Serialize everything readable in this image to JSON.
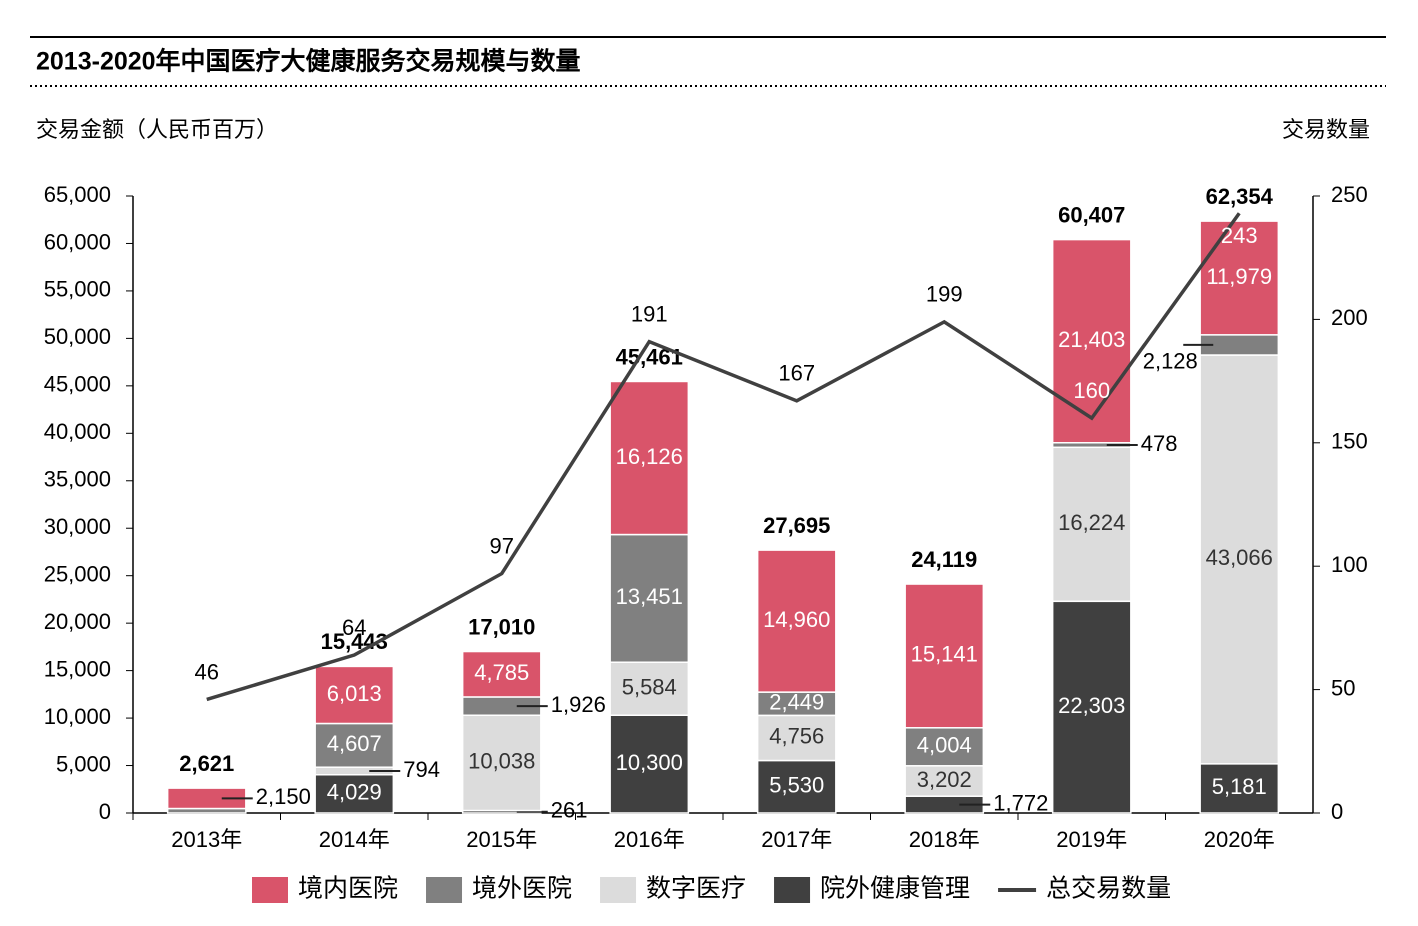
{
  "chart_data": {
    "type": "bar",
    "stacked": true,
    "title": "2013-2020年中国医疗大健康服务交易规模与数量",
    "y_label": "交易金额（人民币百万）",
    "y2_label": "交易数量",
    "categories": [
      "2013年",
      "2014年",
      "2015年",
      "2016年",
      "2017年",
      "2018年",
      "2019年",
      "2020年"
    ],
    "series": [
      {
        "name": "境内医院",
        "color": "#d9546a",
        "stack_order": 4,
        "values": [
          2150,
          6013,
          4785,
          16126,
          14960,
          15141,
          21403,
          11979
        ],
        "value_labels": [
          "2,150",
          "6,013",
          "4,785",
          "16,126",
          "14,960",
          "15,141",
          "21,403",
          "11,979"
        ]
      },
      {
        "name": "境外医院",
        "color": "#808080",
        "stack_order": 3,
        "values": [
          471,
          4607,
          1926,
          13451,
          2449,
          4004,
          478,
          2128
        ],
        "value_labels": [
          null,
          "4,607",
          "1,926",
          "13,451",
          "2,449",
          "4,004",
          "478",
          "2,128"
        ]
      },
      {
        "name": "数字医疗",
        "color": "#dcdcdc",
        "stack_order": 2,
        "values": [
          0,
          794,
          10038,
          5584,
          4756,
          3202,
          16224,
          43066
        ],
        "value_labels": [
          null,
          "794",
          "10,038",
          "5,584",
          "4,756",
          "3,202",
          "16,224",
          "43,066"
        ]
      },
      {
        "name": "院外健康管理",
        "color": "#404040",
        "stack_order": 1,
        "values": [
          0,
          4029,
          261,
          10300,
          5530,
          1772,
          22303,
          5181
        ],
        "value_labels": [
          null,
          "4,029",
          "261",
          "10,300",
          "5,530",
          "1,772",
          "22,303",
          "5,181"
        ]
      },
      {
        "name": "总交易数量",
        "color": "#404040",
        "type": "line",
        "axis": "y2",
        "values": [
          46,
          64,
          97,
          191,
          167,
          199,
          160,
          243
        ]
      }
    ],
    "totals": {
      "values": [
        2621,
        15443,
        17010,
        45461,
        27695,
        24119,
        60407,
        62354
      ],
      "value_labels": [
        "2,621",
        "15,443",
        "17,010",
        "45,461",
        "27,695",
        "24,119",
        "60,407",
        "62,354"
      ]
    },
    "ylim": [
      0,
      65000
    ],
    "yticks": [
      0,
      {
        "value": 5000,
        "label": "5,000"
      },
      {
        "value": 10000,
        "label": "10,000"
      },
      {
        "value": 15000,
        "label": "15,000"
      },
      {
        "value": 20000,
        "label": "20,000"
      },
      {
        "value": 25000,
        "label": "25,000"
      },
      {
        "value": 30000,
        "label": "30,000"
      },
      {
        "value": 35000,
        "label": "35,000"
      },
      {
        "value": 40000,
        "label": "40,000"
      },
      {
        "value": 45000,
        "label": "45,000"
      },
      {
        "value": 50000,
        "label": "50,000"
      },
      {
        "value": 55000,
        "label": "55,000"
      },
      {
        "value": 60000,
        "label": "60,000"
      },
      {
        "value": 65000,
        "label": "65,000"
      }
    ],
    "y2lim": [
      0,
      250
    ],
    "y2ticks": [
      0,
      50,
      100,
      150,
      200,
      250
    ],
    "grid": false,
    "legend": "bottom"
  }
}
